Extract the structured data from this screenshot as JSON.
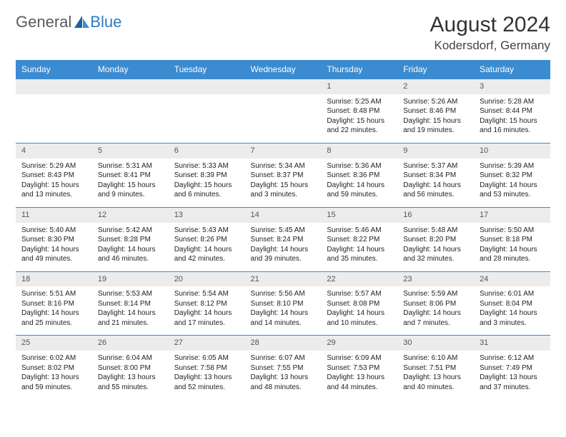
{
  "logo": {
    "text1": "General",
    "text2": "Blue",
    "icon_color": "#2b7dc2"
  },
  "header": {
    "title": "August 2024",
    "location": "Kodersdorf, Germany"
  },
  "styling": {
    "header_bg": "#3b8bd0",
    "header_text": "#ffffff",
    "daynum_bg": "#ececec",
    "daynum_text": "#555555",
    "row_border": "#3b8bd0",
    "body_text": "#222222",
    "background": "#ffffff",
    "title_fontsize": 30,
    "location_fontsize": 17,
    "dayheader_fontsize": 12,
    "daynum_fontsize": 11,
    "body_fontsize": 10
  },
  "day_labels": [
    "Sunday",
    "Monday",
    "Tuesday",
    "Wednesday",
    "Thursday",
    "Friday",
    "Saturday"
  ],
  "weeks": [
    [
      null,
      null,
      null,
      null,
      {
        "n": "1",
        "sunrise": "Sunrise: 5:25 AM",
        "sunset": "Sunset: 8:48 PM",
        "daylight": "Daylight: 15 hours and 22 minutes."
      },
      {
        "n": "2",
        "sunrise": "Sunrise: 5:26 AM",
        "sunset": "Sunset: 8:46 PM",
        "daylight": "Daylight: 15 hours and 19 minutes."
      },
      {
        "n": "3",
        "sunrise": "Sunrise: 5:28 AM",
        "sunset": "Sunset: 8:44 PM",
        "daylight": "Daylight: 15 hours and 16 minutes."
      }
    ],
    [
      {
        "n": "4",
        "sunrise": "Sunrise: 5:29 AM",
        "sunset": "Sunset: 8:43 PM",
        "daylight": "Daylight: 15 hours and 13 minutes."
      },
      {
        "n": "5",
        "sunrise": "Sunrise: 5:31 AM",
        "sunset": "Sunset: 8:41 PM",
        "daylight": "Daylight: 15 hours and 9 minutes."
      },
      {
        "n": "6",
        "sunrise": "Sunrise: 5:33 AM",
        "sunset": "Sunset: 8:39 PM",
        "daylight": "Daylight: 15 hours and 6 minutes."
      },
      {
        "n": "7",
        "sunrise": "Sunrise: 5:34 AM",
        "sunset": "Sunset: 8:37 PM",
        "daylight": "Daylight: 15 hours and 3 minutes."
      },
      {
        "n": "8",
        "sunrise": "Sunrise: 5:36 AM",
        "sunset": "Sunset: 8:36 PM",
        "daylight": "Daylight: 14 hours and 59 minutes."
      },
      {
        "n": "9",
        "sunrise": "Sunrise: 5:37 AM",
        "sunset": "Sunset: 8:34 PM",
        "daylight": "Daylight: 14 hours and 56 minutes."
      },
      {
        "n": "10",
        "sunrise": "Sunrise: 5:39 AM",
        "sunset": "Sunset: 8:32 PM",
        "daylight": "Daylight: 14 hours and 53 minutes."
      }
    ],
    [
      {
        "n": "11",
        "sunrise": "Sunrise: 5:40 AM",
        "sunset": "Sunset: 8:30 PM",
        "daylight": "Daylight: 14 hours and 49 minutes."
      },
      {
        "n": "12",
        "sunrise": "Sunrise: 5:42 AM",
        "sunset": "Sunset: 8:28 PM",
        "daylight": "Daylight: 14 hours and 46 minutes."
      },
      {
        "n": "13",
        "sunrise": "Sunrise: 5:43 AM",
        "sunset": "Sunset: 8:26 PM",
        "daylight": "Daylight: 14 hours and 42 minutes."
      },
      {
        "n": "14",
        "sunrise": "Sunrise: 5:45 AM",
        "sunset": "Sunset: 8:24 PM",
        "daylight": "Daylight: 14 hours and 39 minutes."
      },
      {
        "n": "15",
        "sunrise": "Sunrise: 5:46 AM",
        "sunset": "Sunset: 8:22 PM",
        "daylight": "Daylight: 14 hours and 35 minutes."
      },
      {
        "n": "16",
        "sunrise": "Sunrise: 5:48 AM",
        "sunset": "Sunset: 8:20 PM",
        "daylight": "Daylight: 14 hours and 32 minutes."
      },
      {
        "n": "17",
        "sunrise": "Sunrise: 5:50 AM",
        "sunset": "Sunset: 8:18 PM",
        "daylight": "Daylight: 14 hours and 28 minutes."
      }
    ],
    [
      {
        "n": "18",
        "sunrise": "Sunrise: 5:51 AM",
        "sunset": "Sunset: 8:16 PM",
        "daylight": "Daylight: 14 hours and 25 minutes."
      },
      {
        "n": "19",
        "sunrise": "Sunrise: 5:53 AM",
        "sunset": "Sunset: 8:14 PM",
        "daylight": "Daylight: 14 hours and 21 minutes."
      },
      {
        "n": "20",
        "sunrise": "Sunrise: 5:54 AM",
        "sunset": "Sunset: 8:12 PM",
        "daylight": "Daylight: 14 hours and 17 minutes."
      },
      {
        "n": "21",
        "sunrise": "Sunrise: 5:56 AM",
        "sunset": "Sunset: 8:10 PM",
        "daylight": "Daylight: 14 hours and 14 minutes."
      },
      {
        "n": "22",
        "sunrise": "Sunrise: 5:57 AM",
        "sunset": "Sunset: 8:08 PM",
        "daylight": "Daylight: 14 hours and 10 minutes."
      },
      {
        "n": "23",
        "sunrise": "Sunrise: 5:59 AM",
        "sunset": "Sunset: 8:06 PM",
        "daylight": "Daylight: 14 hours and 7 minutes."
      },
      {
        "n": "24",
        "sunrise": "Sunrise: 6:01 AM",
        "sunset": "Sunset: 8:04 PM",
        "daylight": "Daylight: 14 hours and 3 minutes."
      }
    ],
    [
      {
        "n": "25",
        "sunrise": "Sunrise: 6:02 AM",
        "sunset": "Sunset: 8:02 PM",
        "daylight": "Daylight: 13 hours and 59 minutes."
      },
      {
        "n": "26",
        "sunrise": "Sunrise: 6:04 AM",
        "sunset": "Sunset: 8:00 PM",
        "daylight": "Daylight: 13 hours and 55 minutes."
      },
      {
        "n": "27",
        "sunrise": "Sunrise: 6:05 AM",
        "sunset": "Sunset: 7:58 PM",
        "daylight": "Daylight: 13 hours and 52 minutes."
      },
      {
        "n": "28",
        "sunrise": "Sunrise: 6:07 AM",
        "sunset": "Sunset: 7:55 PM",
        "daylight": "Daylight: 13 hours and 48 minutes."
      },
      {
        "n": "29",
        "sunrise": "Sunrise: 6:09 AM",
        "sunset": "Sunset: 7:53 PM",
        "daylight": "Daylight: 13 hours and 44 minutes."
      },
      {
        "n": "30",
        "sunrise": "Sunrise: 6:10 AM",
        "sunset": "Sunset: 7:51 PM",
        "daylight": "Daylight: 13 hours and 40 minutes."
      },
      {
        "n": "31",
        "sunrise": "Sunrise: 6:12 AM",
        "sunset": "Sunset: 7:49 PM",
        "daylight": "Daylight: 13 hours and 37 minutes."
      }
    ]
  ]
}
